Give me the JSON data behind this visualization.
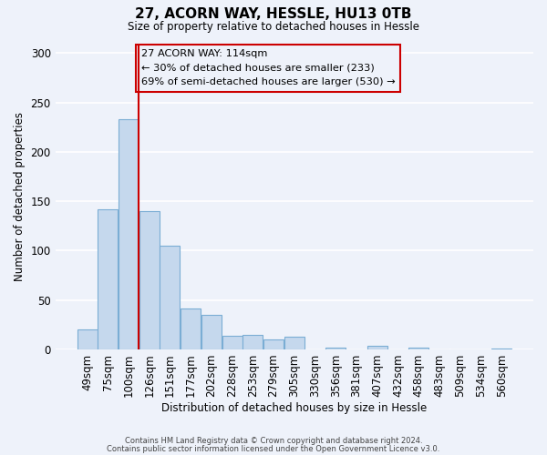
{
  "title": "27, ACORN WAY, HESSLE, HU13 0TB",
  "subtitle": "Size of property relative to detached houses in Hessle",
  "xlabel": "Distribution of detached houses by size in Hessle",
  "ylabel": "Number of detached properties",
  "bar_labels": [
    "49sqm",
    "75sqm",
    "100sqm",
    "126sqm",
    "151sqm",
    "177sqm",
    "202sqm",
    "228sqm",
    "253sqm",
    "279sqm",
    "305sqm",
    "330sqm",
    "356sqm",
    "381sqm",
    "407sqm",
    "432sqm",
    "458sqm",
    "483sqm",
    "509sqm",
    "534sqm",
    "560sqm"
  ],
  "bar_values": [
    20,
    142,
    233,
    140,
    105,
    41,
    35,
    14,
    15,
    10,
    13,
    0,
    2,
    0,
    4,
    0,
    2,
    0,
    0,
    0,
    1
  ],
  "bar_color": "#c5d8ed",
  "bar_edge_color": "#7aadd4",
  "vline_color": "#cc0000",
  "annotation_text_line1": "27 ACORN WAY: 114sqm",
  "annotation_text_line2": "← 30% of detached houses are smaller (233)",
  "annotation_text_line3": "69% of semi-detached houses are larger (530) →",
  "box_edge_color": "#cc0000",
  "ylim": [
    0,
    310
  ],
  "yticks": [
    0,
    50,
    100,
    150,
    200,
    250,
    300
  ],
  "footer_line1": "Contains HM Land Registry data © Crown copyright and database right 2024.",
  "footer_line2": "Contains public sector information licensed under the Open Government Licence v3.0.",
  "background_color": "#eef2fa",
  "grid_color": "#ffffff"
}
